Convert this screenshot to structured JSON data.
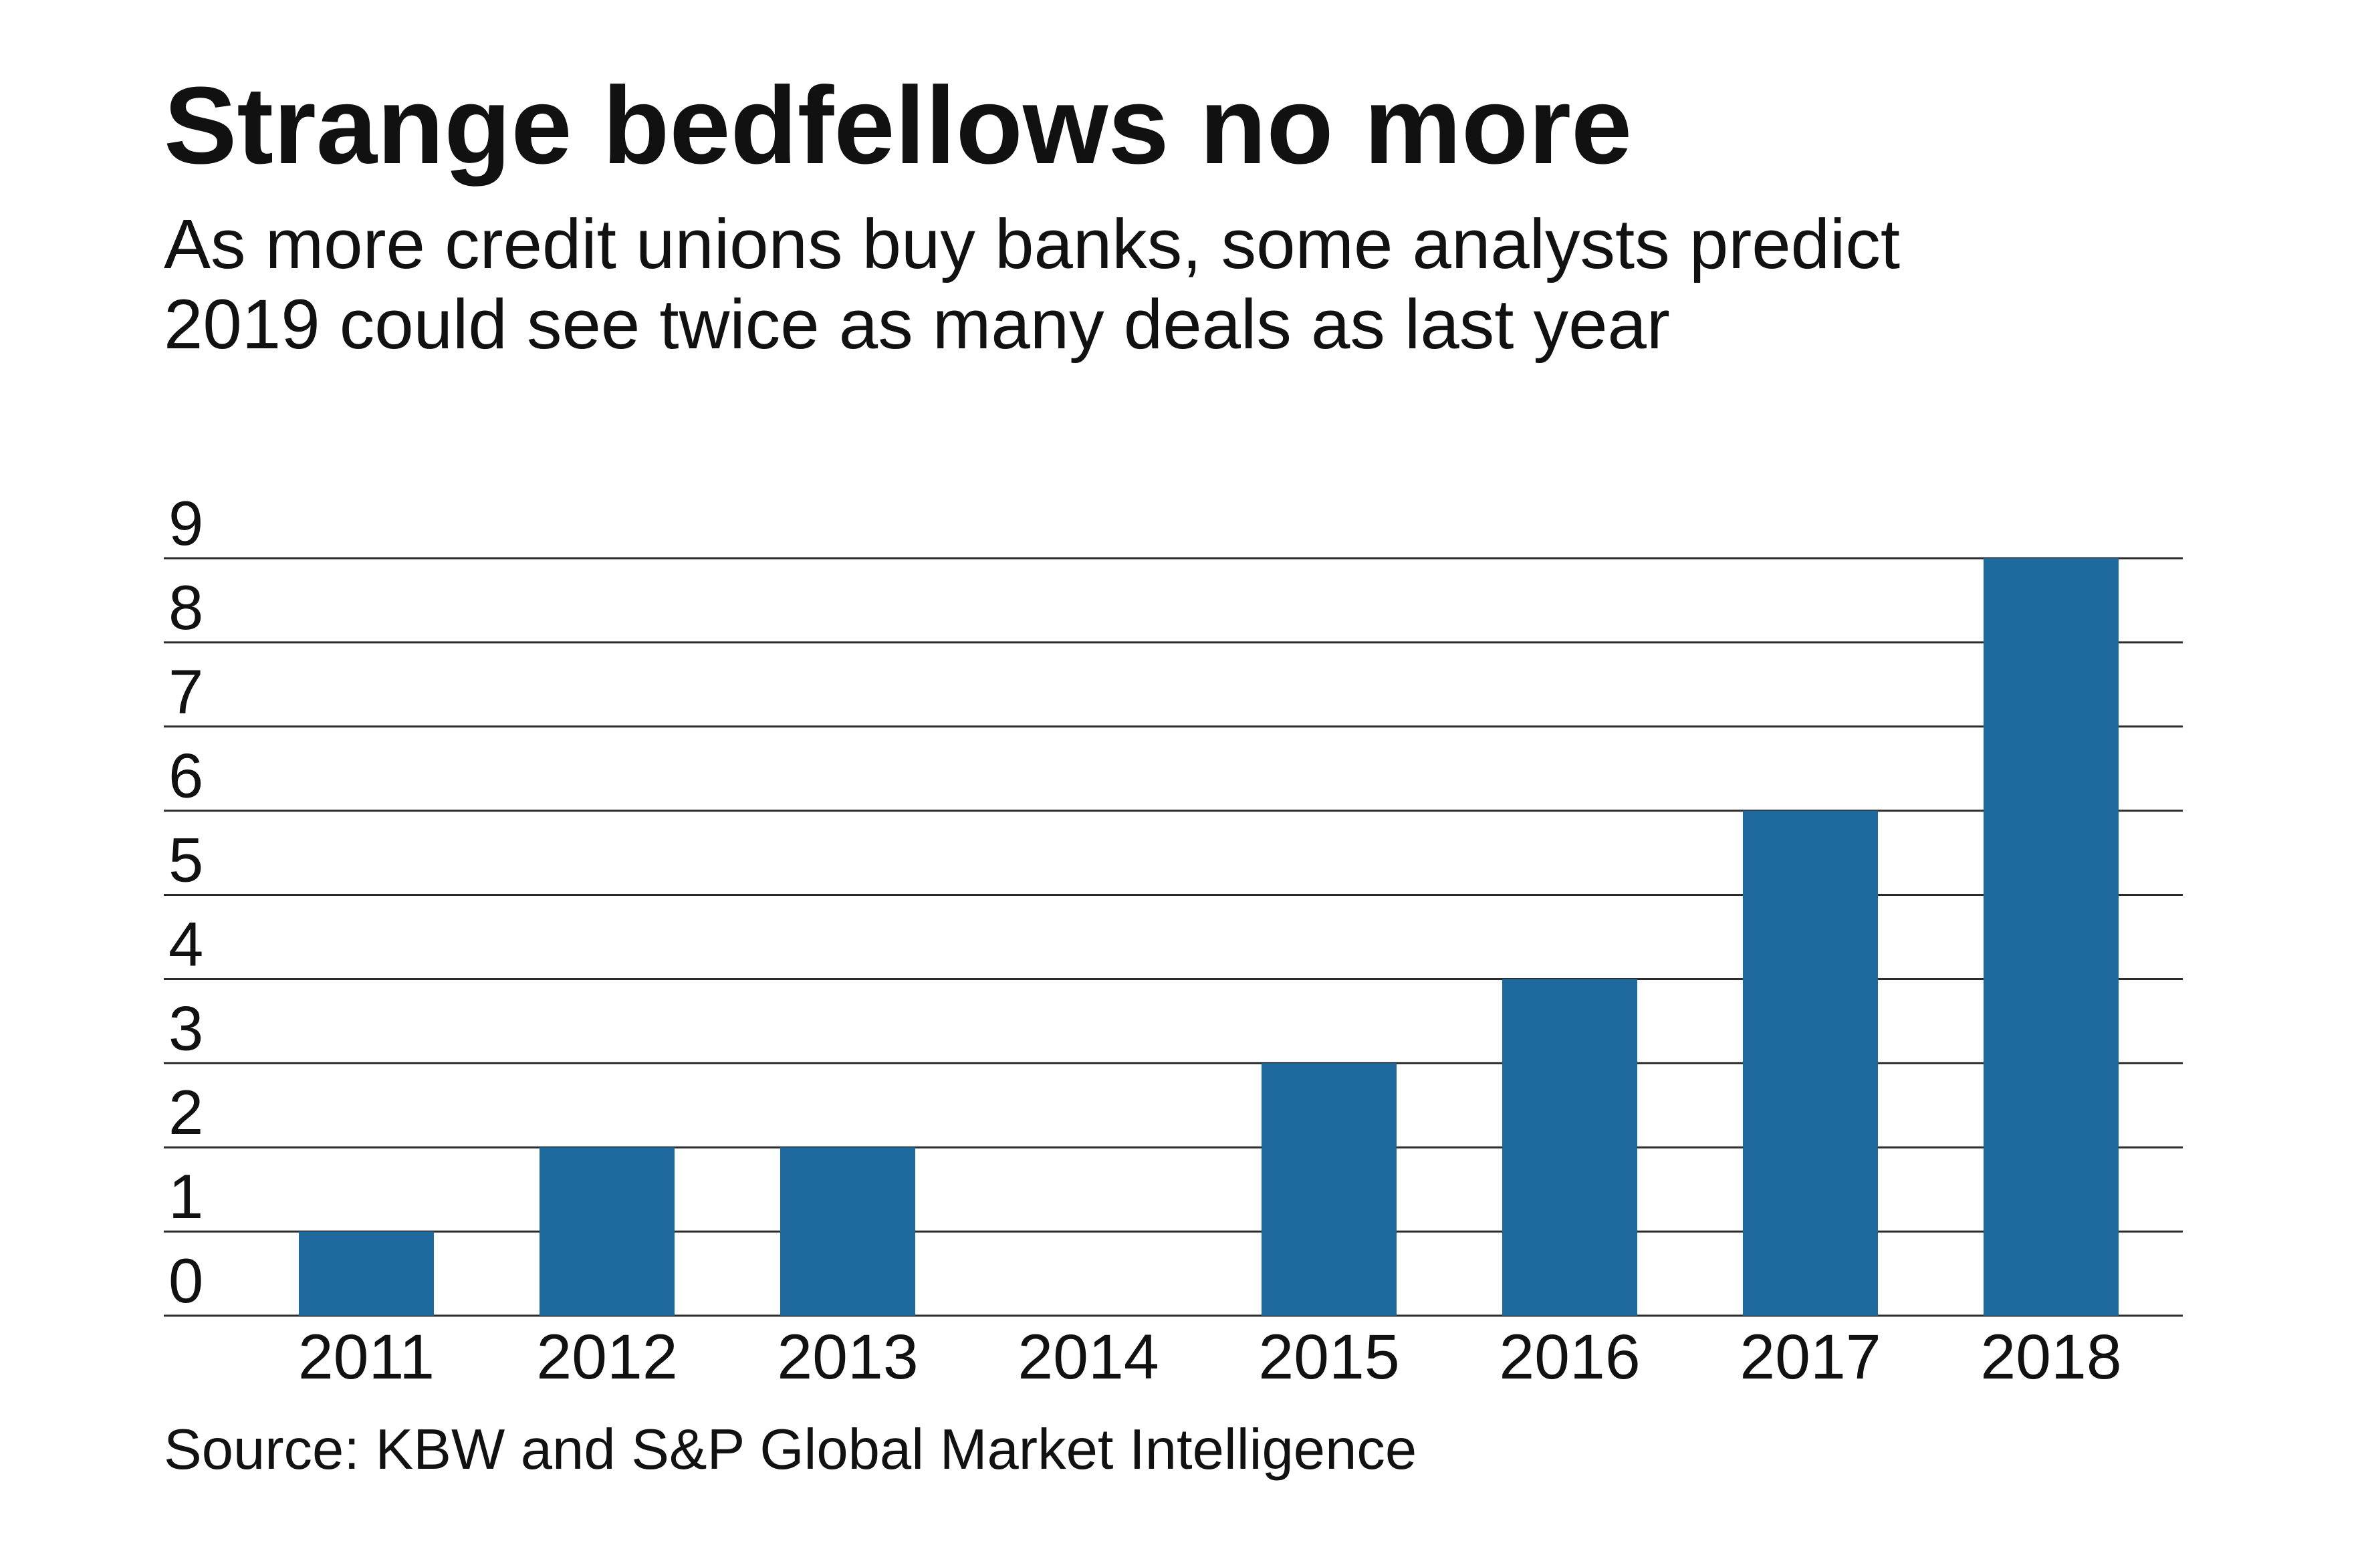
{
  "colors": {
    "bar": "#1e6a9f",
    "text": "#111111",
    "grid": "#2b2b2b",
    "background": "#ffffff"
  },
  "chart_data": {
    "type": "bar",
    "title": "Strange bedfellows no more",
    "subtitle_lines": [
      "As more credit unions buy banks, some analysts predict",
      "2019 could see twice as many deals as last year"
    ],
    "source": "Source: KBW and S&P Global Market Intelligence",
    "categories": [
      "2011",
      "2012",
      "2013",
      "2014",
      "2015",
      "2016",
      "2017",
      "2018"
    ],
    "values": [
      1,
      2,
      2,
      0,
      3,
      4,
      6,
      9
    ],
    "ylim": [
      0,
      9
    ],
    "yticks": [
      0,
      1,
      2,
      3,
      4,
      5,
      6,
      7,
      8,
      9
    ],
    "grid": true
  }
}
